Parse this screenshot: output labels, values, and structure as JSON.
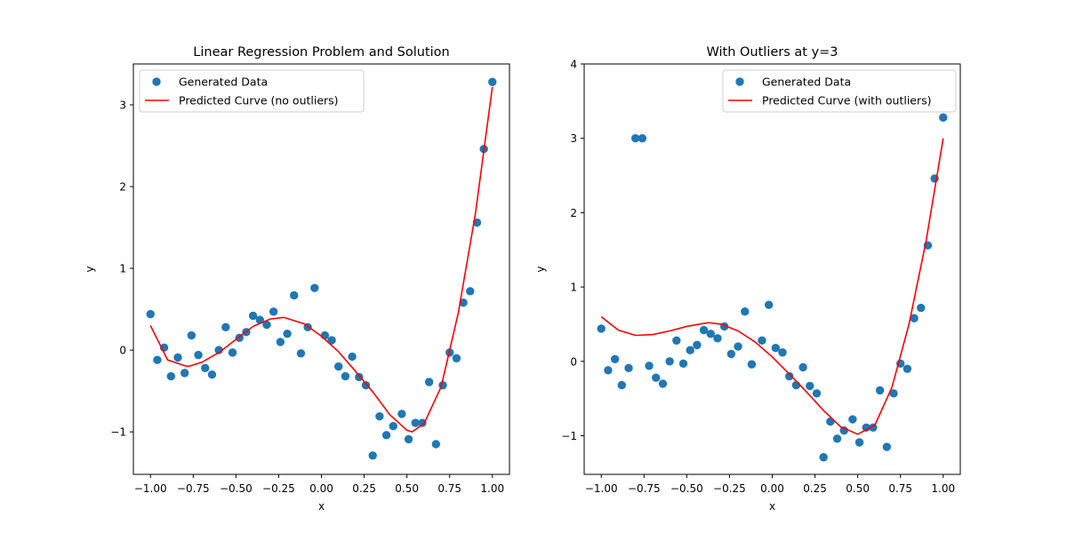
{
  "colors": {
    "points": "#1f77b4",
    "curve": "#ff0000",
    "axes": "#000000",
    "legend_border": "#cccccc"
  },
  "chart_data": [
    {
      "type": "scatter",
      "title": "Linear Regression Problem and Solution",
      "xlabel": "x",
      "ylabel": "y",
      "xlim": [
        -1.1,
        1.1
      ],
      "ylim": [
        -1.52,
        3.5
      ],
      "xticks": [
        -1.0,
        -0.75,
        -0.5,
        -0.25,
        0.0,
        0.25,
        0.5,
        0.75,
        1.0
      ],
      "xtick_labels": [
        "−1.00",
        "−0.75",
        "−0.50",
        "−0.25",
        "0.00",
        "0.25",
        "0.50",
        "0.75",
        "1.00"
      ],
      "yticks": [
        -1,
        0,
        1,
        2,
        3
      ],
      "ytick_labels": [
        "−1",
        "0",
        "1",
        "2",
        "3"
      ],
      "legend_position": "top-left",
      "series": [
        {
          "name": "Generated Data",
          "kind": "points",
          "points": [
            [
              -1.0,
              0.44
            ],
            [
              -0.96,
              -0.12
            ],
            [
              -0.92,
              0.03
            ],
            [
              -0.88,
              -0.32
            ],
            [
              -0.84,
              -0.09
            ],
            [
              -0.8,
              -0.28
            ],
            [
              -0.76,
              0.18
            ],
            [
              -0.72,
              -0.06
            ],
            [
              -0.68,
              -0.22
            ],
            [
              -0.64,
              -0.3
            ],
            [
              -0.6,
              0.0
            ],
            [
              -0.56,
              0.28
            ],
            [
              -0.52,
              -0.03
            ],
            [
              -0.48,
              0.15
            ],
            [
              -0.44,
              0.22
            ],
            [
              -0.4,
              0.42
            ],
            [
              -0.36,
              0.37
            ],
            [
              -0.32,
              0.31
            ],
            [
              -0.28,
              0.47
            ],
            [
              -0.24,
              0.1
            ],
            [
              -0.2,
              0.2
            ],
            [
              -0.16,
              0.67
            ],
            [
              -0.12,
              -0.04
            ],
            [
              -0.08,
              0.28
            ],
            [
              -0.04,
              0.76
            ],
            [
              0.02,
              0.18
            ],
            [
              0.06,
              0.12
            ],
            [
              0.1,
              -0.2
            ],
            [
              0.14,
              -0.32
            ],
            [
              0.18,
              -0.08
            ],
            [
              0.22,
              -0.33
            ],
            [
              0.26,
              -0.43
            ],
            [
              0.3,
              -1.29
            ],
            [
              0.34,
              -0.81
            ],
            [
              0.38,
              -1.04
            ],
            [
              0.42,
              -0.93
            ],
            [
              0.47,
              -0.78
            ],
            [
              0.51,
              -1.09
            ],
            [
              0.55,
              -0.89
            ],
            [
              0.59,
              -0.89
            ],
            [
              0.63,
              -0.39
            ],
            [
              0.67,
              -1.15
            ],
            [
              0.71,
              -0.43
            ],
            [
              0.75,
              -0.03
            ],
            [
              0.79,
              -0.1
            ],
            [
              0.83,
              0.58
            ],
            [
              0.87,
              0.72
            ],
            [
              0.91,
              1.56
            ],
            [
              0.95,
              2.46
            ],
            [
              1.0,
              3.28
            ]
          ]
        },
        {
          "name": "Predicted Curve (no outliers)",
          "kind": "line",
          "x": [
            -1.0,
            -0.9,
            -0.8,
            -0.78,
            -0.7,
            -0.6,
            -0.5,
            -0.4,
            -0.3,
            -0.22,
            -0.1,
            0.0,
            0.1,
            0.2,
            0.3,
            0.4,
            0.5,
            0.53,
            0.6,
            0.7,
            0.8,
            0.9,
            1.0
          ],
          "y": [
            0.3,
            -0.12,
            -0.19,
            -0.2,
            -0.15,
            -0.03,
            0.13,
            0.29,
            0.38,
            0.4,
            0.32,
            0.17,
            -0.02,
            -0.26,
            -0.51,
            -0.79,
            -0.98,
            -1.0,
            -0.9,
            -0.45,
            0.45,
            1.66,
            3.22
          ]
        }
      ]
    },
    {
      "type": "scatter",
      "title": "With Outliers at y=3",
      "xlabel": "x",
      "ylabel": "y",
      "xlim": [
        -1.1,
        1.1
      ],
      "ylim": [
        -1.52,
        4.0
      ],
      "xticks": [
        -1.0,
        -0.75,
        -0.5,
        -0.25,
        0.0,
        0.25,
        0.5,
        0.75,
        1.0
      ],
      "xtick_labels": [
        "−1.00",
        "−0.75",
        "−0.50",
        "−0.25",
        "0.00",
        "0.25",
        "0.50",
        "0.75",
        "1.00"
      ],
      "yticks": [
        -1,
        0,
        1,
        2,
        3,
        4
      ],
      "ytick_labels": [
        "−1",
        "0",
        "1",
        "2",
        "3",
        "4"
      ],
      "legend_position": "top-right",
      "series": [
        {
          "name": "Generated Data",
          "kind": "points",
          "points": [
            [
              -1.0,
              0.44
            ],
            [
              -0.96,
              -0.12
            ],
            [
              -0.92,
              0.03
            ],
            [
              -0.88,
              -0.32
            ],
            [
              -0.84,
              -0.09
            ],
            [
              -0.8,
              3.0
            ],
            [
              -0.76,
              3.0
            ],
            [
              -0.72,
              -0.06
            ],
            [
              -0.68,
              -0.22
            ],
            [
              -0.64,
              -0.3
            ],
            [
              -0.6,
              0.0
            ],
            [
              -0.56,
              0.28
            ],
            [
              -0.52,
              -0.03
            ],
            [
              -0.48,
              0.15
            ],
            [
              -0.44,
              0.22
            ],
            [
              -0.4,
              0.42
            ],
            [
              -0.36,
              0.37
            ],
            [
              -0.32,
              0.31
            ],
            [
              -0.28,
              0.47
            ],
            [
              -0.24,
              0.1
            ],
            [
              -0.2,
              0.2
            ],
            [
              -0.16,
              0.67
            ],
            [
              -0.12,
              -0.04
            ],
            [
              -0.06,
              0.28
            ],
            [
              -0.02,
              0.76
            ],
            [
              0.02,
              0.18
            ],
            [
              0.06,
              0.12
            ],
            [
              0.1,
              -0.2
            ],
            [
              0.14,
              -0.32
            ],
            [
              0.18,
              -0.08
            ],
            [
              0.22,
              -0.33
            ],
            [
              0.26,
              -0.43
            ],
            [
              0.3,
              -1.29
            ],
            [
              0.34,
              -0.81
            ],
            [
              0.38,
              -1.04
            ],
            [
              0.42,
              -0.93
            ],
            [
              0.47,
              -0.78
            ],
            [
              0.51,
              -1.09
            ],
            [
              0.55,
              -0.89
            ],
            [
              0.59,
              -0.89
            ],
            [
              0.63,
              -0.39
            ],
            [
              0.67,
              -1.15
            ],
            [
              0.71,
              -0.43
            ],
            [
              0.75,
              -0.03
            ],
            [
              0.79,
              -0.1
            ],
            [
              0.83,
              0.58
            ],
            [
              0.87,
              0.72
            ],
            [
              0.91,
              1.56
            ],
            [
              0.95,
              2.46
            ],
            [
              1.0,
              3.28
            ]
          ]
        },
        {
          "name": "Predicted Curve (with outliers)",
          "kind": "line",
          "x": [
            -1.0,
            -0.9,
            -0.8,
            -0.7,
            -0.6,
            -0.5,
            -0.4,
            -0.37,
            -0.3,
            -0.2,
            -0.1,
            0.0,
            0.1,
            0.2,
            0.3,
            0.4,
            0.5,
            0.6,
            0.7,
            0.8,
            0.9,
            1.0
          ],
          "y": [
            0.6,
            0.42,
            0.35,
            0.36,
            0.41,
            0.47,
            0.51,
            0.52,
            0.5,
            0.41,
            0.26,
            0.06,
            -0.17,
            -0.41,
            -0.66,
            -0.88,
            -0.98,
            -0.86,
            -0.35,
            0.5,
            1.62,
            3.0
          ]
        }
      ]
    }
  ]
}
